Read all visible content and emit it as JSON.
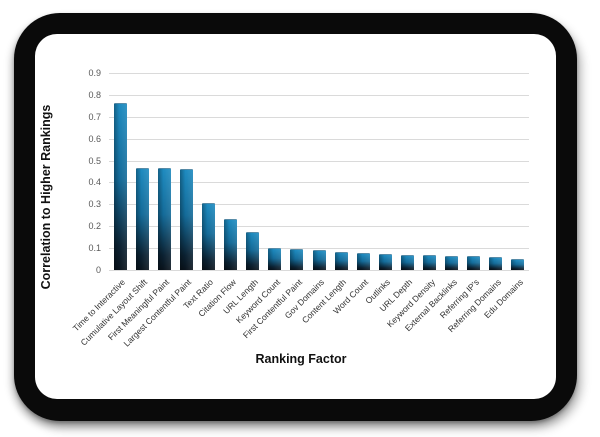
{
  "device": {
    "kind": "tablet-frame",
    "bezel_color": "#0a0a0a",
    "screen_color": "#ffffff"
  },
  "chart_data": {
    "type": "bar",
    "title": "",
    "xlabel": "Ranking Factor",
    "ylabel": "Correlation to Higher Rankings",
    "ylim": [
      0,
      0.9
    ],
    "yticks": [
      "0.9",
      "0.8",
      "0.7",
      "0.6",
      "0.5",
      "0.4",
      "0.3",
      "0.2",
      "0.1",
      "0"
    ],
    "grid": true,
    "legend": false,
    "bar_color_top": "#1d8abf",
    "bar_color_bottom": "#0a141d",
    "gridline_color": "#dadada",
    "categories": [
      "Time to Interactive",
      "Cumulative Layout Shift",
      "First Meaningful Paint",
      "Largest Contentful Paint",
      "Text Ratio",
      "Citation Flow",
      "URL Length",
      "Keyword Count",
      "First Contentful Paint",
      "Gov Domains",
      "Content Length",
      "Word Count",
      "Outlinks",
      "URL Depth",
      "Keyword Density",
      "External Backlinks",
      "Referring IP's",
      "Referring Domains",
      "Edu Domains"
    ],
    "values": [
      0.76,
      0.46,
      0.46,
      0.455,
      0.3,
      0.23,
      0.17,
      0.095,
      0.09,
      0.085,
      0.08,
      0.075,
      0.07,
      0.065,
      0.062,
      0.06,
      0.058,
      0.055,
      0.045
    ]
  }
}
